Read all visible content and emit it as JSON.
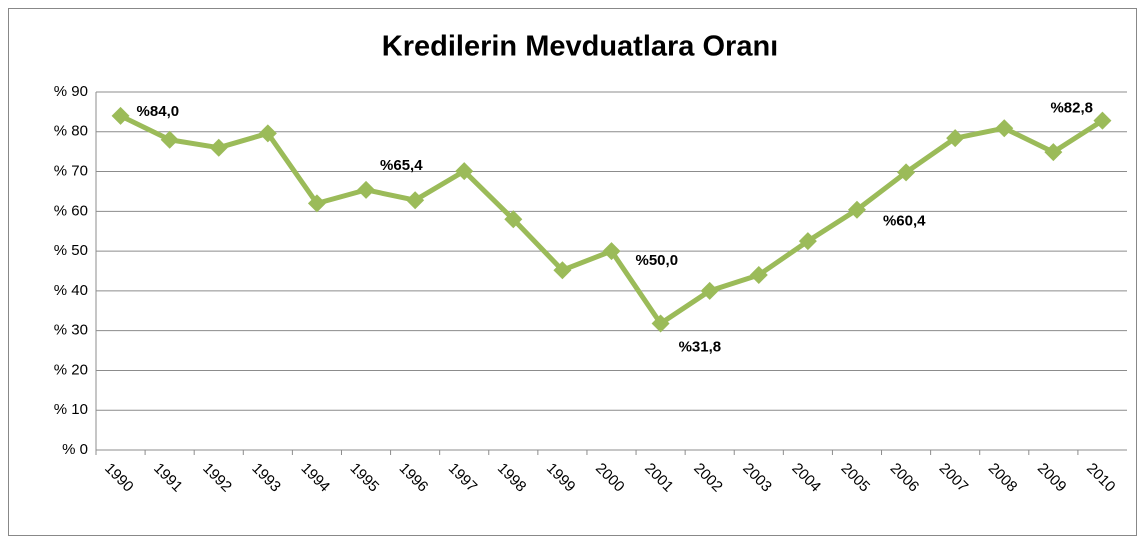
{
  "chart_data": {
    "type": "line",
    "title": "Kredilerin Mevduatlara Oranı",
    "categories": [
      "1990",
      "1991",
      "1992",
      "1993",
      "1994",
      "1995",
      "1996",
      "1997",
      "1998",
      "1999",
      "2000",
      "2001",
      "2002",
      "2003",
      "2004",
      "2005",
      "2006",
      "2007",
      "2008",
      "2009",
      "2010"
    ],
    "series": [
      {
        "name": "Kredilerin Mevduatlara Oranı",
        "color": "#9bbb59",
        "values": [
          84.0,
          78,
          76,
          79.6,
          62,
          65.4,
          62.8,
          70.1,
          58,
          45.2,
          50.0,
          31.8,
          40,
          44,
          52.5,
          60.4,
          69.8,
          78.4,
          80.9,
          74.9,
          82.8
        ],
        "value_labels": [
          "%84,0",
          null,
          null,
          null,
          null,
          "%65,4",
          null,
          null,
          null,
          null,
          "%50,0",
          "%31,8",
          null,
          null,
          null,
          "%60,4",
          null,
          null,
          null,
          null,
          "%82,8"
        ]
      }
    ],
    "ylim": [
      0,
      90
    ],
    "yticks": [
      {
        "value": 0,
        "label": "% 0"
      },
      {
        "value": 10,
        "label": "% 10"
      },
      {
        "value": 20,
        "label": "% 20"
      },
      {
        "value": 30,
        "label": "% 30"
      },
      {
        "value": 40,
        "label": "% 40"
      },
      {
        "value": 50,
        "label": "% 50"
      },
      {
        "value": 60,
        "label": "% 60"
      },
      {
        "value": 70,
        "label": "% 70"
      },
      {
        "value": 80,
        "label": "% 80"
      },
      {
        "value": 90,
        "label": "% 90"
      }
    ],
    "grid": true
  }
}
